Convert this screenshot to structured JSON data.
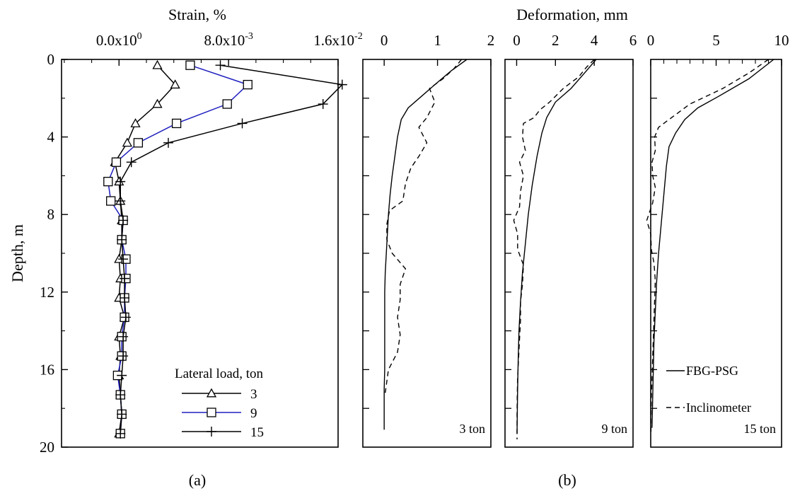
{
  "panel_labels": {
    "a": "(a)",
    "b": "(b)"
  },
  "chart_data": [
    {
      "id": "strain",
      "type": "line",
      "title": "",
      "xlabel": "Strain, %",
      "ylabel": "Depth, m",
      "xlim": [
        -0.0042,
        0.016
      ],
      "ylim": [
        20,
        0
      ],
      "x_ticks": [
        0,
        0.008,
        0.016
      ],
      "x_tick_labels": [
        {
          "mant": "0.0x10",
          "exp": "0"
        },
        {
          "mant": "8.0x10",
          "exp": "-3"
        },
        {
          "mant": "1.6x10",
          "exp": "-2"
        }
      ],
      "y_ticks": [
        0,
        4,
        8,
        12,
        16,
        20
      ],
      "y_tick_labels": [
        "0",
        "4",
        "8",
        "12",
        "16",
        "20"
      ],
      "legend": {
        "title": "Lateral load, ton",
        "position": "bottom-right"
      },
      "depth": [
        0.3,
        1.3,
        2.3,
        3.3,
        4.3,
        5.3,
        6.3,
        7.3,
        8.3,
        9.3,
        10.3,
        11.3,
        12.3,
        13.3,
        14.3,
        15.3,
        16.3,
        17.3,
        18.3,
        19.3
      ],
      "series": [
        {
          "name": "3",
          "color": "#000000",
          "marker": "triangle",
          "values": [
            0.0028,
            0.0041,
            0.0028,
            0.0012,
            0.0006,
            -0.0003,
            0.0,
            0.0001,
            0.0002,
            0.0002,
            0.0,
            0.0001,
            0.0,
            0.0004,
            0.0,
            0.0001,
            0.0,
            0.0001,
            0.0002,
            0.0
          ]
        },
        {
          "name": "9",
          "color": "#1f1fbf",
          "marker": "square",
          "values": [
            0.0052,
            0.0094,
            0.0079,
            0.0042,
            0.0014,
            -0.0002,
            -0.0008,
            -0.0006,
            0.0003,
            0.0002,
            0.0005,
            0.0005,
            0.0004,
            0.0004,
            0.0002,
            0.0002,
            -0.0001,
            0.0001,
            0.0002,
            0.0001
          ]
        },
        {
          "name": "15",
          "color": "#000000",
          "marker": "plus",
          "values": [
            0.0074,
            0.0163,
            0.0149,
            0.009,
            0.0036,
            0.0009,
            0.0001,
            0.0001,
            0.0003,
            0.0002,
            0.0003,
            0.0004,
            0.0004,
            0.0005,
            0.0003,
            0.0003,
            0.0002,
            0.0001,
            0.0002,
            0.0001
          ]
        }
      ]
    },
    {
      "id": "deformation",
      "type": "line",
      "title": "Deformation, mm",
      "ylabel": "",
      "ylim": [
        20,
        0
      ],
      "y_ticks": [
        0,
        2,
        4,
        6,
        8,
        10,
        12,
        14,
        16,
        18,
        20
      ],
      "legend_lines": [
        {
          "name": "FBG-PSG",
          "style": "solid"
        },
        {
          "name": "Inclinometer",
          "style": "dashed"
        }
      ],
      "subpanels": [
        {
          "label": "3 ton",
          "xlim": [
            -0.4,
            2
          ],
          "x_ticks": [
            0,
            1,
            2
          ],
          "x_tick_labels": [
            "0",
            "1",
            "2"
          ],
          "series": [
            {
              "name": "FBG-PSG",
              "style": "solid",
              "points": [
                [
                  1.55,
                  0
                ],
                [
                  1.25,
                  0.6
                ],
                [
                  0.95,
                  1.3
                ],
                [
                  0.7,
                  1.9
                ],
                [
                  0.45,
                  2.5
                ],
                [
                  0.32,
                  3.1
                ],
                [
                  0.25,
                  4
                ],
                [
                  0.2,
                  5
                ],
                [
                  0.15,
                  6
                ],
                [
                  0.11,
                  7
                ],
                [
                  0.08,
                  8
                ],
                [
                  0.06,
                  9
                ],
                [
                  0.04,
                  10
                ],
                [
                  0.02,
                  11
                ],
                [
                  0.01,
                  12
                ],
                [
                  0.01,
                  13
                ],
                [
                  0.01,
                  14
                ],
                [
                  0.01,
                  15
                ],
                [
                  0.01,
                  16
                ],
                [
                  0,
                  17
                ],
                [
                  0,
                  18
                ],
                [
                  0,
                  19.1
                ]
              ]
            },
            {
              "name": "Inclinometer",
              "style": "dashed",
              "points": [
                [
                  1.45,
                  0
                ],
                [
                  1.3,
                  0.5
                ],
                [
                  1.1,
                  1.0
                ],
                [
                  0.85,
                  1.5
                ],
                [
                  0.95,
                  2.2
                ],
                [
                  0.8,
                  3.0
                ],
                [
                  0.65,
                  3.5
                ],
                [
                  0.8,
                  4.3
                ],
                [
                  0.65,
                  5.0
                ],
                [
                  0.5,
                  5.6
                ],
                [
                  0.4,
                  6.4
                ],
                [
                  0.35,
                  7.3
                ],
                [
                  0.1,
                  7.8
                ],
                [
                  0.05,
                  8.5
                ],
                [
                  0.05,
                  9.3
                ],
                [
                  0.15,
                  10.0
                ],
                [
                  0.4,
                  10.8
                ],
                [
                  0.3,
                  11.6
                ],
                [
                  0.3,
                  12.4
                ],
                [
                  0.25,
                  13.3
                ],
                [
                  0.3,
                  14.2
                ],
                [
                  0.25,
                  15.1
                ],
                [
                  0.08,
                  16
                ],
                [
                  0.02,
                  17.2
                ]
              ]
            }
          ]
        },
        {
          "label": "9 ton",
          "xlim": [
            -0.6,
            6
          ],
          "x_ticks": [
            0,
            2,
            4,
            6
          ],
          "x_tick_labels": [
            "0",
            "2",
            "4",
            "6"
          ],
          "series": [
            {
              "name": "FBG-PSG",
              "style": "solid",
              "points": [
                [
                  4.1,
                  0
                ],
                [
                  3.5,
                  0.7
                ],
                [
                  2.8,
                  1.5
                ],
                [
                  2.0,
                  2.2
                ],
                [
                  1.55,
                  3
                ],
                [
                  1.3,
                  3.8
                ],
                [
                  1.05,
                  5
                ],
                [
                  0.8,
                  6.5
                ],
                [
                  0.6,
                  8
                ],
                [
                  0.45,
                  9.5
                ],
                [
                  0.3,
                  11
                ],
                [
                  0.2,
                  12.5
                ],
                [
                  0.12,
                  14
                ],
                [
                  0.08,
                  15.5
                ],
                [
                  0.05,
                  17
                ],
                [
                  0.03,
                  18.5
                ],
                [
                  0.02,
                  19.3
                ]
              ]
            },
            {
              "name": "Inclinometer",
              "style": "dashed",
              "points": [
                [
                  4.0,
                  0
                ],
                [
                  3.6,
                  0.4
                ],
                [
                  3.2,
                  0.9
                ],
                [
                  2.4,
                  1.5
                ],
                [
                  1.7,
                  2.2
                ],
                [
                  1.2,
                  2.6
                ],
                [
                  0.9,
                  3.0
                ],
                [
                  0.35,
                  3.3
                ],
                [
                  0.3,
                  4
                ],
                [
                  0.45,
                  4.7
                ],
                [
                  0.15,
                  5.3
                ],
                [
                  0.35,
                  6.0
                ],
                [
                  0.2,
                  6.8
                ],
                [
                  0.15,
                  7.6
                ],
                [
                  -0.15,
                  8.3
                ],
                [
                  0.05,
                  9.0
                ],
                [
                  0.05,
                  9.8
                ],
                [
                  0.35,
                  10.6
                ],
                [
                  0.3,
                  11.6
                ],
                [
                  0.2,
                  12.5
                ],
                [
                  0.2,
                  13.4
                ],
                [
                  0.15,
                  14.4
                ],
                [
                  0.1,
                  15.4
                ],
                [
                  0.05,
                  16.4
                ],
                [
                  0.03,
                  17.4
                ],
                [
                  0.02,
                  18.4
                ],
                [
                  0.02,
                  19.6
                ]
              ]
            }
          ]
        },
        {
          "label": "15 ton",
          "xlim": [
            0,
            10
          ],
          "x_ticks": [
            0,
            5,
            10
          ],
          "x_tick_labels": [
            "0",
            "5",
            "10"
          ],
          "series": [
            {
              "name": "FBG-PSG",
              "style": "solid",
              "points": [
                [
                  9.4,
                  0
                ],
                [
                  7.5,
                  1.0
                ],
                [
                  5.2,
                  1.9
                ],
                [
                  3.6,
                  2.5
                ],
                [
                  2.6,
                  3.1
                ],
                [
                  1.9,
                  3.8
                ],
                [
                  1.4,
                  4.5
                ],
                [
                  1.2,
                  5.5
                ],
                [
                  1.0,
                  7
                ],
                [
                  0.8,
                  8.5
                ],
                [
                  0.6,
                  10
                ],
                [
                  0.45,
                  11.5
                ],
                [
                  0.35,
                  13
                ],
                [
                  0.25,
                  14.5
                ],
                [
                  0.2,
                  16
                ],
                [
                  0.15,
                  17.5
                ],
                [
                  0.1,
                  19
                ]
              ]
            },
            {
              "name": "Inclinometer",
              "style": "dashed",
              "points": [
                [
                  9.0,
                  0
                ],
                [
                  7.5,
                  0.7
                ],
                [
                  5.5,
                  1.5
                ],
                [
                  3.0,
                  2.3
                ],
                [
                  1.8,
                  2.9
                ],
                [
                  0.6,
                  3.5
                ],
                [
                  0.3,
                  4
                ],
                [
                  0.35,
                  4.7
                ],
                [
                  0.1,
                  5.3
                ],
                [
                  0.15,
                  6.0
                ],
                [
                  0.35,
                  6.6
                ],
                [
                  0.15,
                  7.4
                ],
                [
                  -0.3,
                  8.3
                ],
                [
                  0.0,
                  9.0
                ],
                [
                  0.05,
                  9.8
                ],
                [
                  0.25,
                  10.5
                ],
                [
                  0.35,
                  11.4
                ],
                [
                  0.3,
                  12.4
                ],
                [
                  0.25,
                  13.4
                ],
                [
                  0.2,
                  14.4
                ],
                [
                  0.15,
                  15.4
                ],
                [
                  0.1,
                  16.4
                ],
                [
                  0.05,
                  17.4
                ],
                [
                  0.02,
                  18.5
                ],
                [
                  0.02,
                  19.4
                ]
              ]
            }
          ]
        }
      ]
    }
  ]
}
